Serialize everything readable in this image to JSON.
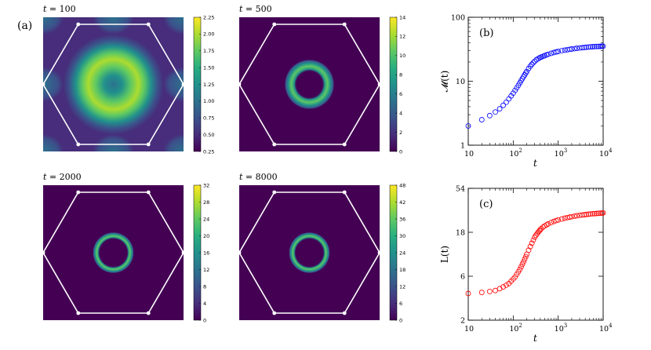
{
  "figure": {
    "panel_a_label": "(a)",
    "panel_b_label": "(b)",
    "panel_c_label": "(c)"
  },
  "colormap": [
    "#440154",
    "#472d7b",
    "#3b528b",
    "#2c728e",
    "#21918c",
    "#28ae80",
    "#5ec962",
    "#addc30",
    "#fde725"
  ],
  "chart_data": [
    {
      "type": "heatmap",
      "panel": "a1",
      "title_var": "t",
      "title_eq": " = 100",
      "colorbar_ticks": [
        "2.25",
        "2.00",
        "1.75",
        "1.50",
        "1.25",
        "1.00",
        "0.75",
        "0.50",
        "0.25"
      ],
      "colorbar_range": [
        0.25,
        2.25
      ],
      "pattern": "broad ring"
    },
    {
      "type": "heatmap",
      "panel": "a2",
      "title_var": "t",
      "title_eq": " = 500",
      "colorbar_ticks": [
        "14",
        "12",
        "10",
        "8",
        "6",
        "4",
        "2",
        "0"
      ],
      "colorbar_range": [
        0,
        14
      ],
      "pattern": "narrow ring"
    },
    {
      "type": "heatmap",
      "panel": "a3",
      "title_var": "t",
      "title_eq": " = 2000",
      "colorbar_ticks": [
        "32",
        "28",
        "24",
        "20",
        "16",
        "12",
        "8",
        "4",
        "0"
      ],
      "colorbar_range": [
        0,
        32
      ],
      "pattern": "thin ring"
    },
    {
      "type": "heatmap",
      "panel": "a4",
      "title_var": "t",
      "title_eq": " = 8000",
      "colorbar_ticks": [
        "48",
        "42",
        "36",
        "30",
        "24",
        "18",
        "12",
        "6",
        "0"
      ],
      "colorbar_range": [
        0,
        48
      ],
      "pattern": "thin ring"
    },
    {
      "type": "scatter",
      "panel": "b",
      "ylabel": "𝓜(t)",
      "xlabel": "t",
      "xscale": "log",
      "yscale": "log",
      "xlim": [
        10,
        10000
      ],
      "ylim": [
        1,
        100
      ],
      "xticks": [
        {
          "base": "10",
          "exp": ""
        },
        {
          "base": "10",
          "exp": "2"
        },
        {
          "base": "10",
          "exp": "3"
        },
        {
          "base": "10",
          "exp": "4"
        }
      ],
      "yticks": [
        "1",
        "10",
        "100"
      ],
      "marker_color": "#0000ff",
      "x": [
        10,
        20,
        30,
        40,
        50,
        60,
        70,
        80,
        90,
        100,
        110,
        120,
        130,
        140,
        150,
        160,
        170,
        180,
        190,
        200,
        220,
        240,
        260,
        280,
        300,
        330,
        360,
        390,
        420,
        460,
        500,
        550,
        600,
        700,
        800,
        900,
        1000,
        1200,
        1400,
        1600,
        1800,
        2000,
        2300,
        2600,
        3000,
        3400,
        3800,
        4200,
        4700,
        5200,
        5800,
        6400,
        7000,
        7800,
        8600,
        9400,
        10000
      ],
      "y": [
        2.0,
        2.5,
        2.9,
        3.3,
        3.7,
        4.2,
        4.7,
        5.3,
        5.9,
        6.5,
        7.2,
        7.9,
        8.6,
        9.4,
        10.2,
        11.0,
        11.8,
        12.6,
        13.4,
        14.2,
        15.8,
        17.2,
        18.4,
        19.5,
        20.5,
        21.7,
        22.6,
        23.3,
        23.9,
        24.5,
        25.1,
        25.8,
        26.4,
        27.3,
        28.1,
        28.7,
        29.2,
        30.0,
        30.6,
        31.1,
        31.5,
        31.9,
        32.3,
        32.7,
        33.1,
        33.4,
        33.7,
        34.0,
        34.2,
        34.4,
        34.6,
        34.8,
        34.9,
        35.0,
        35.1,
        35.2,
        35.3
      ]
    },
    {
      "type": "scatter",
      "panel": "c",
      "ylabel": "L(t)",
      "xlabel": "t",
      "xscale": "log",
      "yscale": "log",
      "xlim": [
        10,
        10000
      ],
      "ylim": [
        2,
        54
      ],
      "xticks": [
        {
          "base": "10",
          "exp": ""
        },
        {
          "base": "10",
          "exp": "2"
        },
        {
          "base": "10",
          "exp": "3"
        },
        {
          "base": "10",
          "exp": "4"
        }
      ],
      "yticks": [
        "2",
        "6",
        "18",
        "54"
      ],
      "marker_color": "#ff0000",
      "x": [
        10,
        20,
        30,
        40,
        50,
        60,
        70,
        80,
        90,
        100,
        110,
        120,
        130,
        140,
        150,
        160,
        170,
        180,
        190,
        200,
        220,
        240,
        260,
        280,
        300,
        320,
        340,
        360,
        380,
        400,
        420,
        460,
        500,
        550,
        600,
        700,
        800,
        900,
        1000,
        1200,
        1400,
        1600,
        1800,
        2000,
        2300,
        2600,
        3000,
        3400,
        3800,
        4200,
        4700,
        5200,
        5800,
        6400,
        7000,
        7800,
        8600,
        9400,
        10000
      ],
      "y": [
        3.9,
        4.0,
        4.1,
        4.2,
        4.4,
        4.6,
        4.8,
        5.0,
        5.3,
        5.6,
        5.9,
        6.3,
        6.7,
        7.1,
        7.6,
        8.1,
        8.6,
        9.2,
        9.8,
        10.4,
        11.5,
        12.6,
        13.7,
        14.8,
        15.9,
        16.7,
        17.4,
        18.0,
        18.6,
        19.2,
        19.7,
        20.5,
        21.1,
        21.7,
        22.2,
        23.0,
        23.6,
        24.1,
        24.5,
        25.1,
        25.6,
        26.0,
        26.3,
        26.6,
        26.9,
        27.2,
        27.5,
        27.7,
        27.9,
        28.1,
        28.3,
        28.4,
        28.6,
        28.7,
        28.8,
        28.9,
        29.0,
        29.1,
        29.2
      ]
    }
  ]
}
